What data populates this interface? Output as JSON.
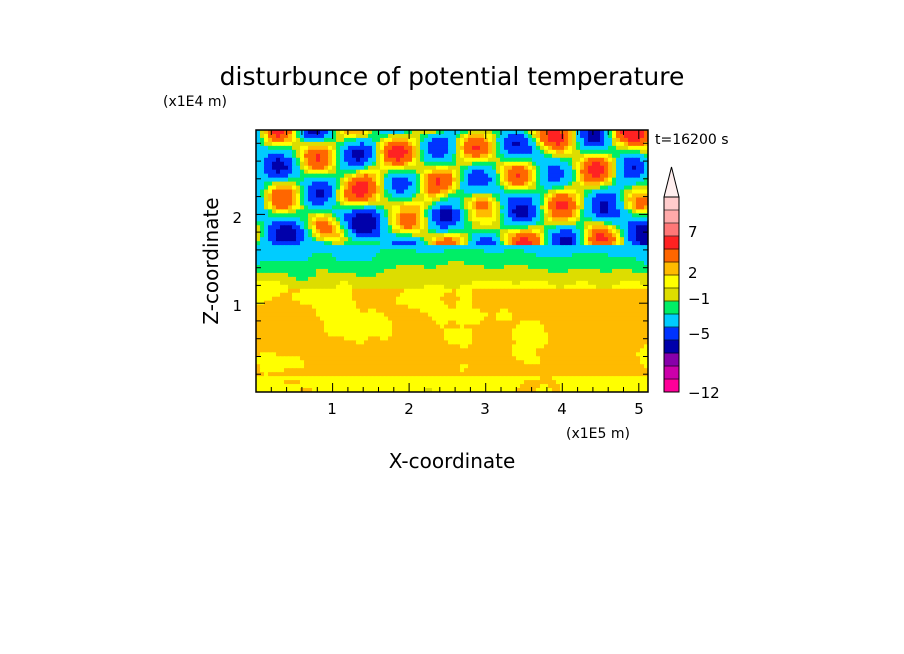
{
  "chart_data": {
    "type": "heatmap",
    "title": "disturbunce of potential temperature",
    "time_label": "t=16200 s",
    "xlabel": "X-coordinate",
    "ylabel": "Z-coordinate",
    "x_unit": "(x1E5 m)",
    "y_unit": "(x1E4 m)",
    "xlim": [
      0,
      5.12
    ],
    "ylim": [
      0,
      2.95
    ],
    "x_ticks": [
      "1",
      "2",
      "3",
      "4",
      "5"
    ],
    "y_ticks": [
      "1",
      "2"
    ],
    "colorbar": {
      "extend": "max",
      "tick_labels": [
        "7",
        "2",
        "−1",
        "−5",
        "−12"
      ],
      "colors": [
        "#ff0099",
        "#cc00aa",
        "#8800aa",
        "#0000aa",
        "#0033ff",
        "#00ccff",
        "#00ee66",
        "#dddd00",
        "#ffff00",
        "#ffbb00",
        "#ff6600",
        "#ff2222",
        "#ff7777",
        "#ffaaaa",
        "#ffcccc"
      ],
      "over_color": "#ffeeee"
    },
    "grid": false
  }
}
